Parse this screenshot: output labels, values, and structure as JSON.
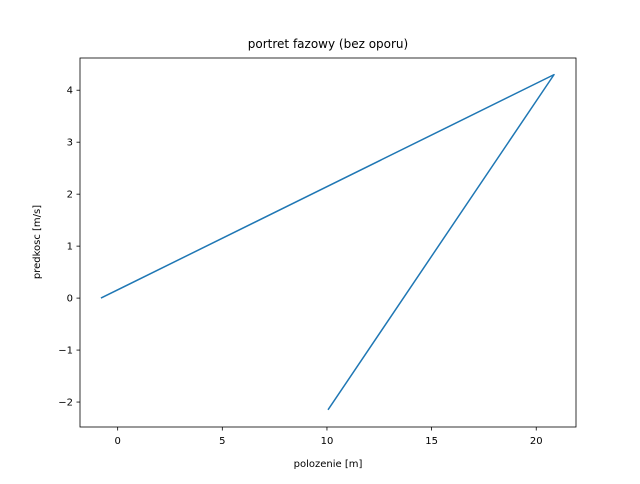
{
  "chart_data": {
    "type": "line",
    "title": "portret fazowy (bez oporu)",
    "xlabel": "polozenie [m]",
    "ylabel": "predkosc [m/s]",
    "xlim": [
      -1.8,
      21.9
    ],
    "ylim": [
      -2.48,
      4.62
    ],
    "xticks": [
      0,
      5,
      10,
      15,
      20
    ],
    "yticks": [
      -2,
      -1,
      0,
      1,
      2,
      3,
      4
    ],
    "grid": false,
    "legend": "none",
    "colors": {
      "line": "#1f77b4"
    },
    "series": [
      {
        "x": [
          -0.8,
          20.85,
          10.05
        ],
        "y": [
          0.0,
          4.3,
          -2.15
        ]
      }
    ]
  }
}
